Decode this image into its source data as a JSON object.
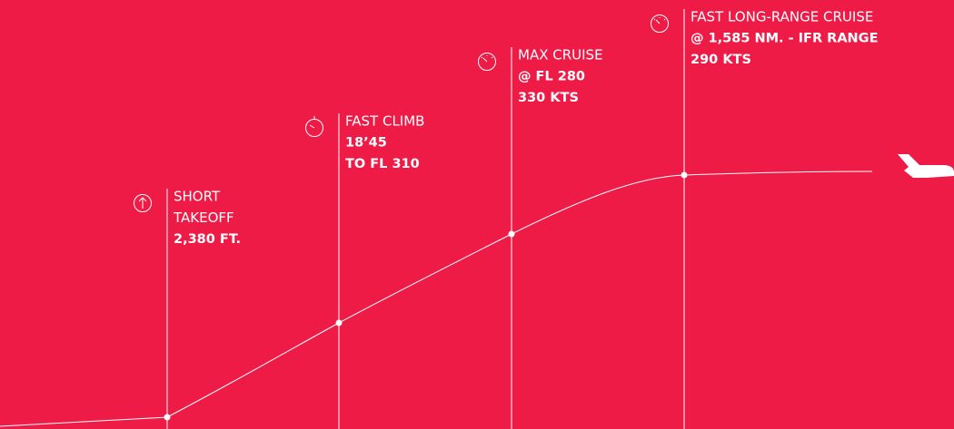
{
  "milestones": [
    {
      "name": [
        "SHORT",
        "TAKEOFF"
      ],
      "details": [
        "2,380 FT."
      ]
    },
    {
      "name": [
        "FAST CLIMB"
      ],
      "details": [
        "18’45",
        "TO FL 310"
      ]
    },
    {
      "name": [
        "MAX CRUISE"
      ],
      "details": [
        "@ FL 280",
        "330 KTS"
      ]
    },
    {
      "name": [
        "FAST LONG-RANGE CRUISE"
      ],
      "details": [
        "@ 1,585 NM. - IFR RANGE",
        "290 KTS"
      ]
    }
  ]
}
